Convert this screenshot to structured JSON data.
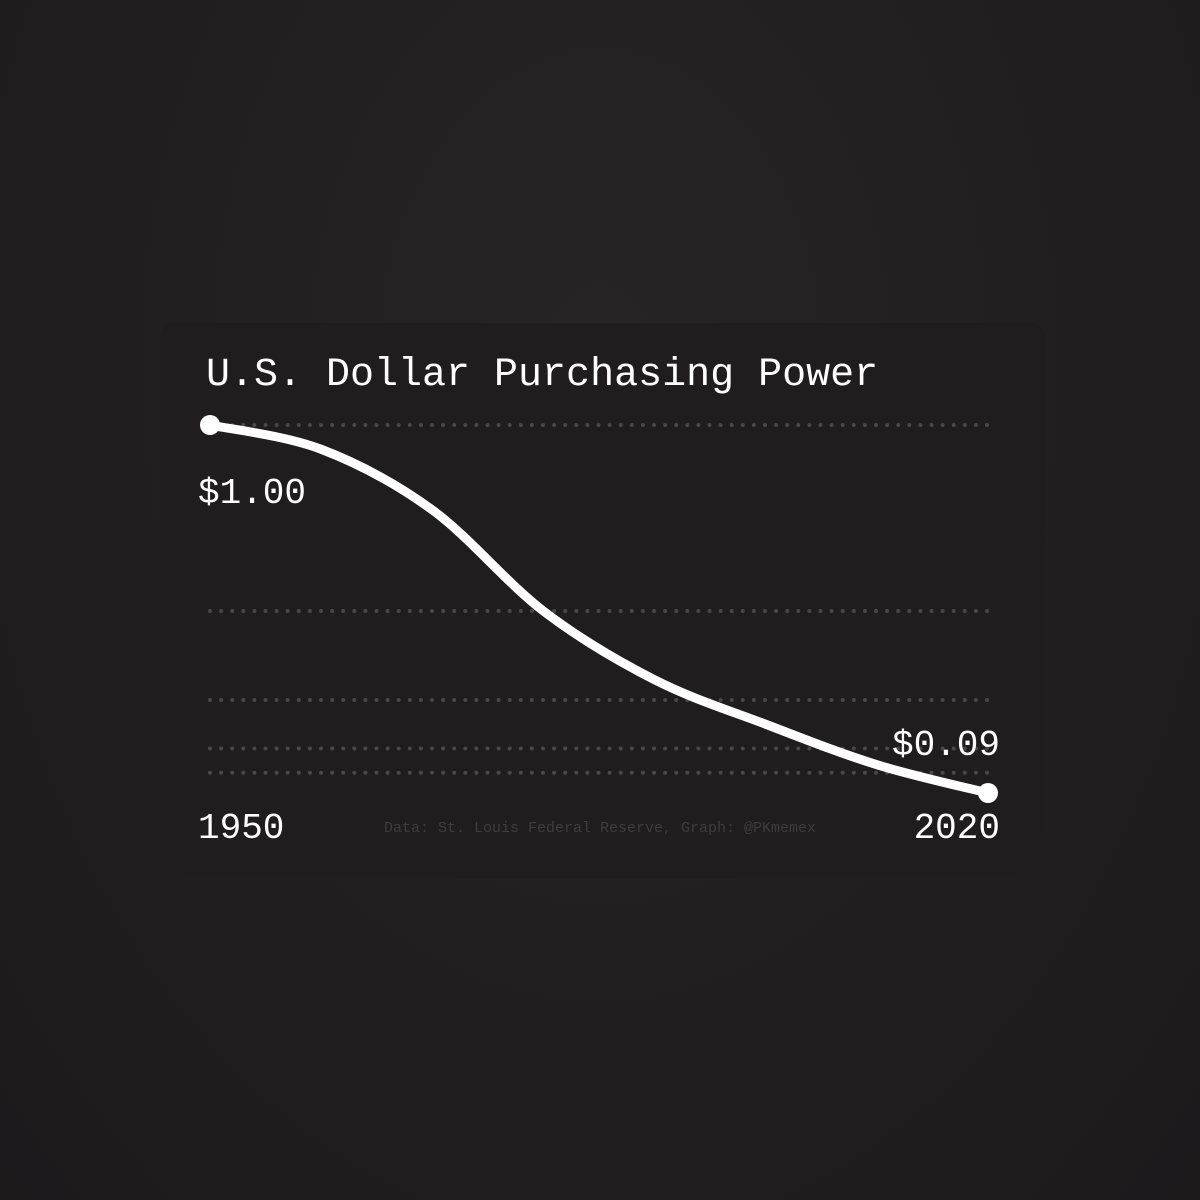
{
  "chart_data": {
    "type": "line",
    "title": "U.S. Dollar Purchasing Power",
    "x": [
      1950,
      1960,
      1970,
      1980,
      1990,
      2000,
      2010,
      2020
    ],
    "values": [
      1.0,
      0.94,
      0.79,
      0.54,
      0.37,
      0.26,
      0.16,
      0.09
    ],
    "value_labels": [
      "$1.00",
      null,
      null,
      null,
      null,
      null,
      null,
      "$0.09"
    ],
    "color": "#ffffff",
    "xlim": [
      1950,
      2020
    ],
    "xticks": [
      1950,
      2020
    ],
    "ylim": [
      0.09,
      1.0
    ],
    "grid_lines": [
      1.0,
      0.54,
      0.32,
      0.2,
      0.14
    ],
    "source": "Data: St. Louis Federal Reserve, Graph: @PKmemex"
  }
}
